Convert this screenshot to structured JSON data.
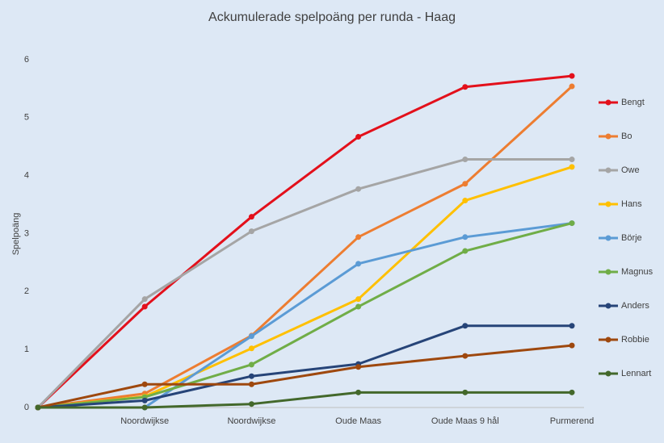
{
  "chart_data": {
    "type": "line",
    "title": "Ackumulerade spelpoäng per runda - Haag",
    "y_label": "Spelpoäng",
    "categories": [
      null,
      "Noordwijkse",
      "Noordwijkse",
      "Oude Maas",
      "Oude Maas 9 hål",
      "Purmerend"
    ],
    "ylim": [
      0,
      6
    ],
    "yticks": [
      0,
      1,
      2,
      3,
      4,
      5,
      6
    ],
    "grid": false,
    "legend": "right",
    "series": [
      {
        "name": "Bengt",
        "color": "#e3101b",
        "values": [
          0,
          1.74,
          3.29,
          4.67,
          5.53,
          5.72
        ]
      },
      {
        "name": "Bo",
        "color": "#ed7d31",
        "values": [
          0,
          0.24,
          1.24,
          2.94,
          3.86,
          5.54
        ]
      },
      {
        "name": "Owe",
        "color": "#a5a5a5",
        "values": [
          0,
          1.87,
          3.04,
          3.77,
          4.28,
          4.28
        ]
      },
      {
        "name": "Hans",
        "color": "#ffc000",
        "values": [
          0,
          0.19,
          1.02,
          1.87,
          3.57,
          4.15
        ]
      },
      {
        "name": "Börje",
        "color": "#5b9bd5",
        "values": [
          0,
          0,
          1.23,
          2.48,
          2.94,
          3.18
        ]
      },
      {
        "name": "Magnus",
        "color": "#70ad47",
        "values": [
          0,
          0.18,
          0.74,
          1.74,
          2.7,
          3.18
        ]
      },
      {
        "name": "Anders",
        "color": "#264478",
        "values": [
          0,
          0.12,
          0.54,
          0.75,
          1.41,
          1.41
        ]
      },
      {
        "name": "Robbie",
        "color": "#9e480e",
        "values": [
          0,
          0.4,
          0.4,
          0.7,
          0.89,
          1.07
        ]
      },
      {
        "name": "Lennart",
        "color": "#43682b",
        "values": [
          0,
          0,
          0.06,
          0.26,
          0.26,
          0.26
        ]
      }
    ]
  }
}
